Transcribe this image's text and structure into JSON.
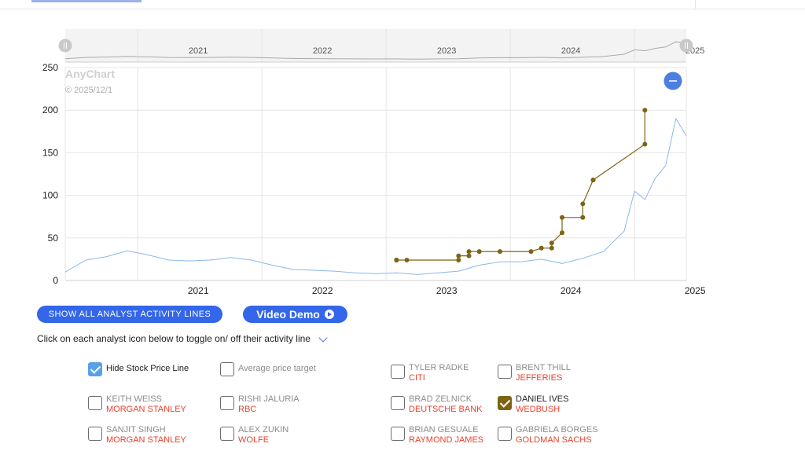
{
  "chart_data": {
    "type": "line",
    "watermark": "AnyChart",
    "watermark_date": "© 2025/12/1",
    "x_ticks": [
      "2021",
      "2022",
      "2023",
      "2024",
      "2025"
    ],
    "navigator_ticks": [
      "2021",
      "2022",
      "2023",
      "2024",
      "2025"
    ],
    "xlim": [
      "2020-06",
      "2025-06"
    ],
    "y_ticks": [
      0,
      50,
      100,
      150,
      200,
      250
    ],
    "ylim": [
      0,
      250
    ],
    "grid": true,
    "series": [
      {
        "type": "line",
        "color": "#8ab8e8",
        "points": [
          [
            "2020-06",
            10
          ],
          [
            "2020-08",
            24
          ],
          [
            "2020-10",
            28
          ],
          [
            "2020-12",
            35
          ],
          [
            "2021-02",
            30
          ],
          [
            "2021-04",
            24
          ],
          [
            "2021-06",
            23
          ],
          [
            "2021-08",
            24
          ],
          [
            "2021-10",
            27
          ],
          [
            "2021-12",
            24
          ],
          [
            "2022-02",
            18
          ],
          [
            "2022-04",
            13
          ],
          [
            "2022-06",
            12
          ],
          [
            "2022-08",
            11
          ],
          [
            "2022-10",
            9
          ],
          [
            "2022-12",
            8
          ],
          [
            "2023-02",
            9
          ],
          [
            "2023-04",
            7
          ],
          [
            "2023-06",
            9
          ],
          [
            "2023-08",
            11
          ],
          [
            "2023-10",
            18
          ],
          [
            "2023-12",
            22
          ],
          [
            "2024-02",
            22
          ],
          [
            "2024-04",
            25
          ],
          [
            "2024-06",
            20
          ],
          [
            "2024-08",
            26
          ],
          [
            "2024-10",
            34
          ],
          [
            "2024-12",
            58
          ],
          [
            "2025-01",
            105
          ],
          [
            "2025-02",
            95
          ],
          [
            "2025-03",
            120
          ],
          [
            "2025-04",
            135
          ],
          [
            "2025-05",
            190
          ],
          [
            "2025-06",
            170
          ]
        ]
      },
      {
        "type": "line",
        "color": "#7c6414",
        "markers": true,
        "points": [
          [
            "2023-02",
            24
          ],
          [
            "2023-02",
            24
          ],
          [
            "2023-03",
            24
          ],
          [
            "2023-08",
            24
          ],
          [
            "2023-08",
            29
          ],
          [
            "2023-09",
            29
          ],
          [
            "2023-09",
            34
          ],
          [
            "2023-10",
            34
          ],
          [
            "2023-12",
            34
          ],
          [
            "2024-03",
            34
          ],
          [
            "2024-04",
            38
          ],
          [
            "2024-05",
            38
          ],
          [
            "2024-05",
            44
          ],
          [
            "2024-06",
            56
          ],
          [
            "2024-06",
            74
          ],
          [
            "2024-08",
            74
          ],
          [
            "2024-08",
            90
          ],
          [
            "2024-09",
            118
          ],
          [
            "2024-09",
            118
          ],
          [
            "2025-02",
            160
          ],
          [
            "2025-02",
            200
          ]
        ]
      }
    ]
  },
  "buttons": {
    "analyst_lines": "SHOW ALL ANALYST ACTIVITY LINES",
    "video_demo": "Video Demo"
  },
  "instruction": "Click on each analyst icon below to toggle on/ off their activity line",
  "options": {
    "hide_price": {
      "label": "Hide Stock Price Line",
      "checked": true
    },
    "avg_target": {
      "label": "Average price target",
      "checked": false
    }
  },
  "analysts": [
    {
      "name": "TYLER RADKE",
      "firm": "CITI",
      "checked": false
    },
    {
      "name": "BRENT THILL",
      "firm": "JEFFERIES",
      "checked": false
    },
    {
      "name": "KEITH WEISS",
      "firm": "MORGAN STANLEY",
      "checked": false
    },
    {
      "name": "RISHI JALURIA",
      "firm": "RBC",
      "checked": false
    },
    {
      "name": "BRAD ZELNICK",
      "firm": "DEUTSCHE BANK",
      "checked": false
    },
    {
      "name": "DANIEL IVES",
      "firm": "WEDBUSH",
      "checked": true
    },
    {
      "name": "SANJIT SINGH",
      "firm": "MORGAN STANLEY",
      "checked": false
    },
    {
      "name": "ALEX ZUKIN",
      "firm": "WOLFE",
      "checked": false
    },
    {
      "name": "BRIAN GESUALE",
      "firm": "RAYMOND JAMES",
      "checked": false
    },
    {
      "name": "GABRIELA BORGES",
      "firm": "GOLDMAN SACHS",
      "checked": false
    }
  ]
}
